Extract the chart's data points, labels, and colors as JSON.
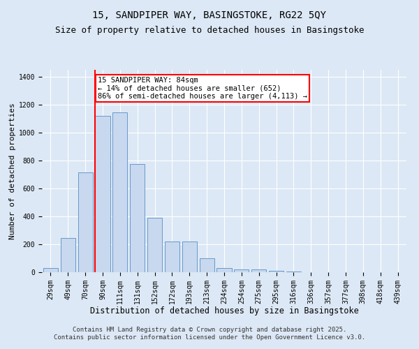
{
  "title": "15, SANDPIPER WAY, BASINGSTOKE, RG22 5QY",
  "subtitle": "Size of property relative to detached houses in Basingstoke",
  "xlabel": "Distribution of detached houses by size in Basingstoke",
  "ylabel": "Number of detached properties",
  "categories": [
    "29sqm",
    "49sqm",
    "70sqm",
    "90sqm",
    "111sqm",
    "131sqm",
    "152sqm",
    "172sqm",
    "193sqm",
    "213sqm",
    "234sqm",
    "254sqm",
    "275sqm",
    "295sqm",
    "316sqm",
    "336sqm",
    "357sqm",
    "377sqm",
    "398sqm",
    "418sqm",
    "439sqm"
  ],
  "values": [
    32,
    245,
    715,
    1120,
    1145,
    775,
    390,
    220,
    220,
    100,
    30,
    20,
    18,
    8,
    5,
    2,
    0,
    0,
    0,
    0,
    0
  ],
  "bar_color": "#c8d8ee",
  "bar_edge_color": "#6699cc",
  "vline_x_index": 3,
  "vline_color": "red",
  "annotation_text": "15 SANDPIPER WAY: 84sqm\n← 14% of detached houses are smaller (652)\n86% of semi-detached houses are larger (4,113) →",
  "annotation_box_facecolor": "white",
  "annotation_box_edgecolor": "red",
  "ylim": [
    0,
    1450
  ],
  "yticks": [
    0,
    200,
    400,
    600,
    800,
    1000,
    1200,
    1400
  ],
  "bg_color": "#dce8f5",
  "grid_color": "white",
  "footer_line1": "Contains HM Land Registry data © Crown copyright and database right 2025.",
  "footer_line2": "Contains public sector information licensed under the Open Government Licence v3.0.",
  "title_fontsize": 10,
  "subtitle_fontsize": 9,
  "xlabel_fontsize": 8.5,
  "ylabel_fontsize": 8,
  "tick_fontsize": 7,
  "annotation_fontsize": 7.5,
  "footer_fontsize": 6.5
}
